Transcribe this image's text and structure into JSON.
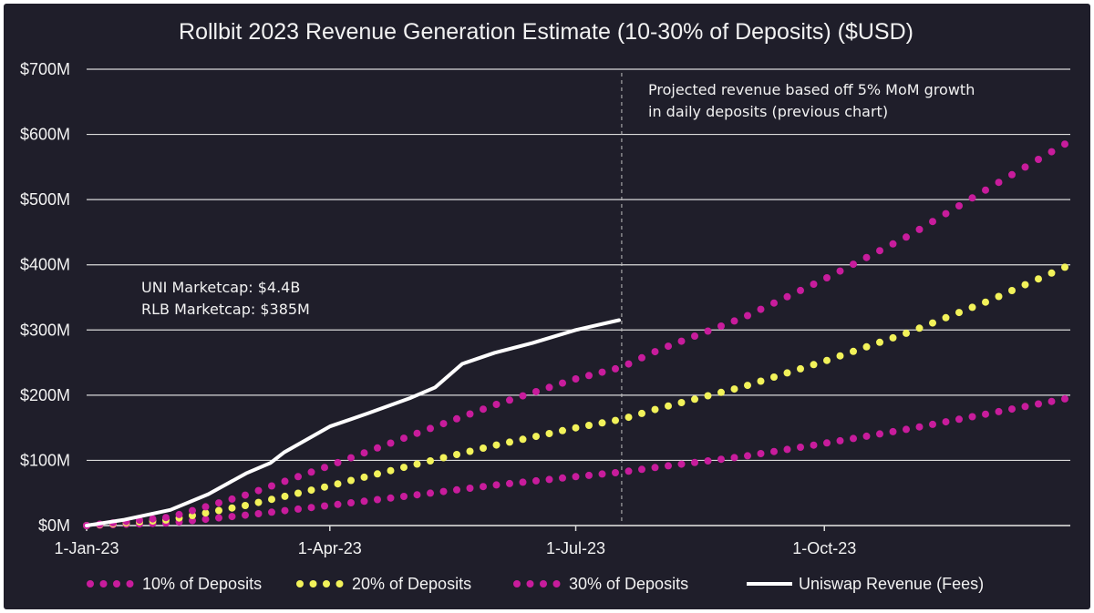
{
  "chart_data": {
    "type": "line",
    "title": "Rollbit 2023 Revenue Generation Estimate (10-30% of Deposits) ($USD)",
    "xlabel": "",
    "ylabel": "",
    "x_tick_labels": [
      "1-Jan-23",
      "1-Apr-23",
      "1-Jul-23",
      "1-Oct-23"
    ],
    "y_tick_labels": [
      "$0M",
      "$100M",
      "$200M",
      "$300M",
      "$400M",
      "$500M",
      "$600M",
      "$700M"
    ],
    "ylim": [
      0,
      700
    ],
    "y_unit": "$M",
    "grid": "horizontal",
    "legend_position": "bottom",
    "projection_start": "2023-07-18",
    "annotations": {
      "projection": [
        "Projected revenue based off 5% MoM growth",
        "in daily deposits (previous chart)"
      ],
      "marketcap": [
        "UNI Marketcap: $4.4B",
        "RLB Marketcap: $385M"
      ]
    },
    "series": [
      {
        "name": "10% of Deposits",
        "style": "dotted",
        "color": "#c81c9c",
        "points": [
          [
            "2023-01-01",
            0
          ],
          [
            "2023-02-01",
            4
          ],
          [
            "2023-03-01",
            16
          ],
          [
            "2023-04-01",
            31
          ],
          [
            "2023-05-01",
            46
          ],
          [
            "2023-06-01",
            62
          ],
          [
            "2023-07-01",
            75
          ],
          [
            "2023-07-18",
            82
          ],
          [
            "2023-08-01",
            90
          ],
          [
            "2023-09-01",
            106
          ],
          [
            "2023-10-01",
            126
          ],
          [
            "2023-11-01",
            148
          ],
          [
            "2023-12-01",
            172
          ],
          [
            "2023-12-31",
            196
          ]
        ]
      },
      {
        "name": "20% of Deposits",
        "style": "dotted",
        "color": "#f2f25a",
        "points": [
          [
            "2023-01-01",
            0
          ],
          [
            "2023-02-01",
            9
          ],
          [
            "2023-03-01",
            31
          ],
          [
            "2023-04-01",
            61
          ],
          [
            "2023-05-01",
            92
          ],
          [
            "2023-06-01",
            123
          ],
          [
            "2023-07-01",
            150
          ],
          [
            "2023-07-18",
            163
          ],
          [
            "2023-08-01",
            180
          ],
          [
            "2023-09-01",
            213
          ],
          [
            "2023-10-01",
            252
          ],
          [
            "2023-11-01",
            296
          ],
          [
            "2023-12-01",
            345
          ],
          [
            "2023-12-31",
            400
          ]
        ]
      },
      {
        "name": "30% of Deposits",
        "style": "dotted",
        "color": "#c81c9c",
        "points": [
          [
            "2023-01-01",
            0
          ],
          [
            "2023-02-01",
            13
          ],
          [
            "2023-03-01",
            47
          ],
          [
            "2023-04-01",
            92
          ],
          [
            "2023-05-01",
            138
          ],
          [
            "2023-06-01",
            185
          ],
          [
            "2023-07-01",
            225
          ],
          [
            "2023-07-18",
            243
          ],
          [
            "2023-08-01",
            270
          ],
          [
            "2023-09-01",
            319
          ],
          [
            "2023-10-01",
            378
          ],
          [
            "2023-11-01",
            444
          ],
          [
            "2023-12-01",
            518
          ],
          [
            "2023-12-31",
            590
          ]
        ]
      },
      {
        "name": "Uniswap Revenue (Fees)",
        "style": "solid",
        "color": "#ffffff",
        "points": [
          [
            "2023-01-01",
            0
          ],
          [
            "2023-01-15",
            9
          ],
          [
            "2023-02-01",
            24
          ],
          [
            "2023-02-15",
            48
          ],
          [
            "2023-03-01",
            80
          ],
          [
            "2023-03-10",
            96
          ],
          [
            "2023-03-15",
            112
          ],
          [
            "2023-04-01",
            152
          ],
          [
            "2023-04-15",
            172
          ],
          [
            "2023-05-01",
            196
          ],
          [
            "2023-05-10",
            212
          ],
          [
            "2023-05-20",
            248
          ],
          [
            "2023-06-01",
            265
          ],
          [
            "2023-06-15",
            280
          ],
          [
            "2023-07-01",
            300
          ],
          [
            "2023-07-17",
            315
          ]
        ]
      }
    ]
  }
}
